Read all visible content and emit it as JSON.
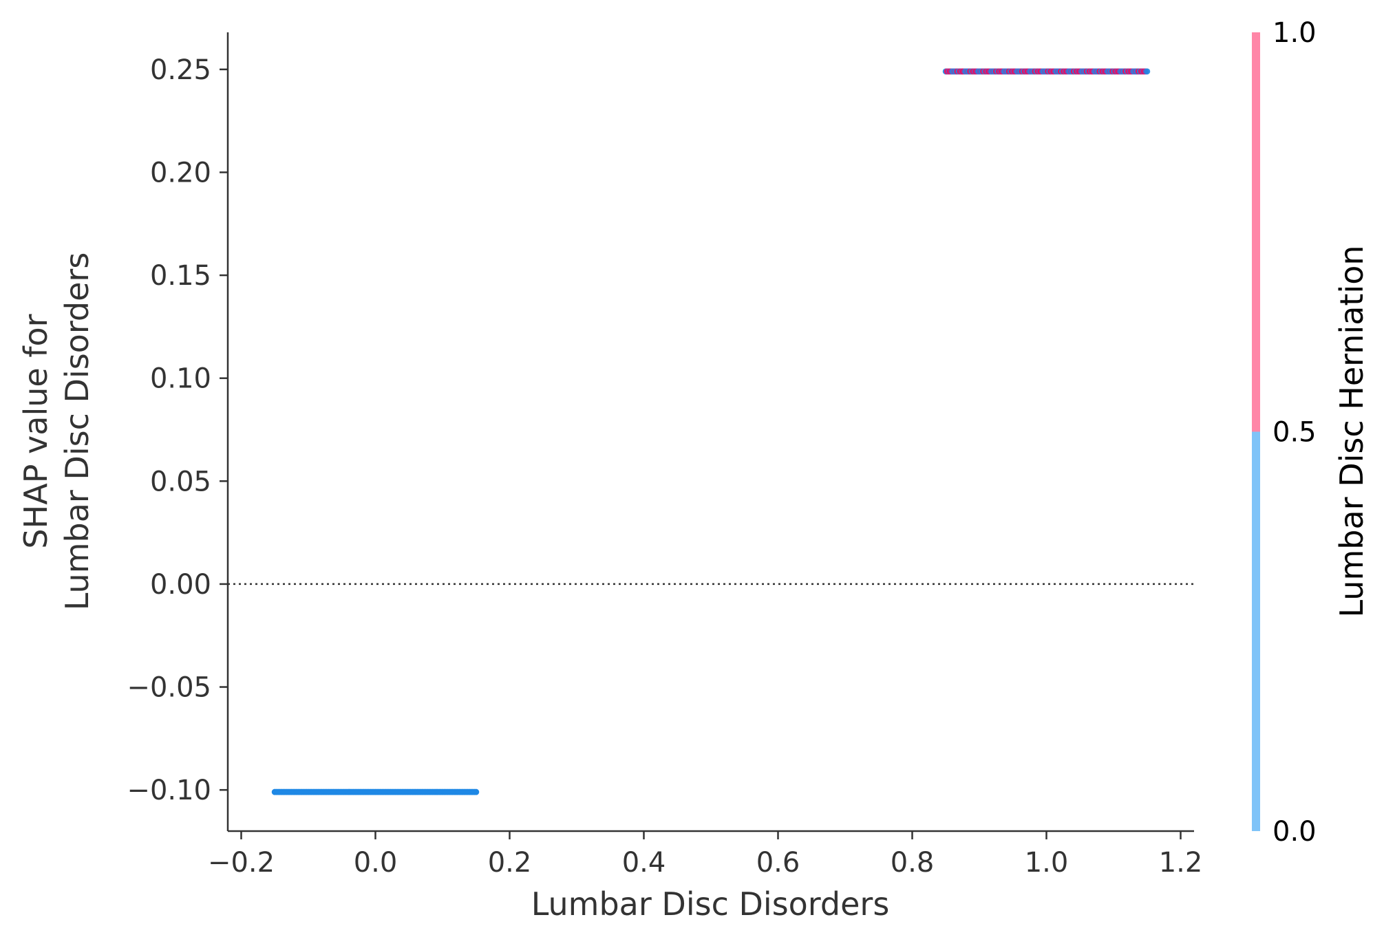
{
  "chart_data": {
    "type": "scatter",
    "title": "",
    "xlabel": "Lumbar Disc Disorders",
    "ylabel_lines": [
      "SHAP value for",
      "Lumbar Disc Disorders"
    ],
    "xlim": [
      -0.22,
      1.22
    ],
    "ylim": [
      -0.12,
      0.268
    ],
    "x_ticks": [
      -0.2,
      0.0,
      0.2,
      0.4,
      0.6,
      0.8,
      1.0,
      1.2
    ],
    "x_tick_labels": [
      "−0.2",
      "0.0",
      "0.2",
      "0.4",
      "0.6",
      "0.8",
      "1.0",
      "1.2"
    ],
    "y_ticks": [
      -0.1,
      -0.05,
      0.0,
      0.05,
      0.1,
      0.15,
      0.2,
      0.25
    ],
    "y_tick_labels": [
      "−0.10",
      "−0.05",
      "0.00",
      "0.05",
      "0.10",
      "0.15",
      "0.20",
      "0.25"
    ],
    "zero_line": 0.0,
    "grid": false,
    "series": [
      {
        "x_range": [
          -0.15,
          0.15
        ],
        "y": -0.101,
        "color_value": 0.0,
        "color": "#1E88E5"
      },
      {
        "x_range": [
          0.85,
          1.15
        ],
        "y": 0.249,
        "color_value": "mixed 0/1",
        "colors": [
          "#1E88E5",
          "#FF0052",
          "#7A4FB0"
        ]
      }
    ],
    "colorbar": {
      "title": "Lumbar Disc Herniation",
      "ticks": [
        0.0,
        0.5,
        1.0
      ],
      "tick_labels": [
        "0.0",
        "0.5",
        "1.0"
      ],
      "low_color": "#7FC3F8",
      "high_color": "#FF86A7"
    }
  }
}
